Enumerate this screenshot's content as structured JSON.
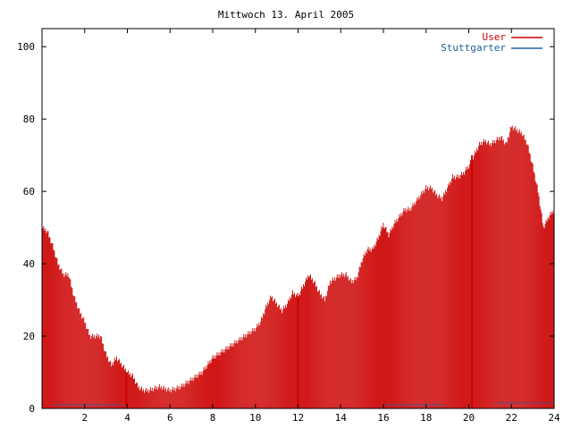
{
  "chart_data": {
    "type": "bar",
    "title": "Mittwoch 13. April 2005",
    "xlabel": "",
    "ylabel": "",
    "xlim": [
      0,
      24
    ],
    "ylim": [
      0,
      105
    ],
    "x_ticks": [
      2,
      4,
      6,
      8,
      10,
      12,
      14,
      16,
      18,
      20,
      22,
      24
    ],
    "x_tick_labels": [
      "2",
      "4",
      "6",
      "8",
      "10",
      "12",
      "14",
      "16",
      "18",
      "20",
      "22",
      "24"
    ],
    "y_ticks": [
      0,
      20,
      40,
      60,
      80,
      100
    ],
    "y_tick_labels": [
      "0",
      "20",
      "40",
      "60",
      "80",
      "100"
    ],
    "grid": false,
    "legend_position": "top-right",
    "series": [
      {
        "name": "User",
        "color": "#cc0000",
        "anchors": [
          [
            0.0,
            50
          ],
          [
            0.25,
            49
          ],
          [
            0.5,
            45
          ],
          [
            0.75,
            40
          ],
          [
            1.0,
            37
          ],
          [
            1.25,
            37
          ],
          [
            1.5,
            31
          ],
          [
            1.75,
            27
          ],
          [
            2.0,
            24
          ],
          [
            2.25,
            20
          ],
          [
            2.5,
            20
          ],
          [
            2.75,
            20
          ],
          [
            3.0,
            15
          ],
          [
            3.25,
            12
          ],
          [
            3.5,
            14
          ],
          [
            3.75,
            12
          ],
          [
            4.0,
            10
          ],
          [
            4.25,
            9
          ],
          [
            4.5,
            6
          ],
          [
            4.75,
            5
          ],
          [
            5.0,
            5
          ],
          [
            5.5,
            6
          ],
          [
            6.0,
            5
          ],
          [
            6.5,
            6
          ],
          [
            7.0,
            8
          ],
          [
            7.5,
            10
          ],
          [
            8.0,
            14
          ],
          [
            8.5,
            16
          ],
          [
            9.0,
            18
          ],
          [
            9.5,
            20
          ],
          [
            10.0,
            22
          ],
          [
            10.25,
            24
          ],
          [
            10.5,
            28
          ],
          [
            10.75,
            31
          ],
          [
            11.0,
            29
          ],
          [
            11.25,
            27
          ],
          [
            11.5,
            29
          ],
          [
            11.75,
            32
          ],
          [
            12.0,
            31
          ],
          [
            12.25,
            34
          ],
          [
            12.5,
            37
          ],
          [
            12.75,
            35
          ],
          [
            13.0,
            32
          ],
          [
            13.25,
            30
          ],
          [
            13.5,
            35
          ],
          [
            13.75,
            36
          ],
          [
            14.0,
            37
          ],
          [
            14.25,
            37
          ],
          [
            14.5,
            35
          ],
          [
            14.75,
            36
          ],
          [
            15.0,
            41
          ],
          [
            15.25,
            44
          ],
          [
            15.5,
            44
          ],
          [
            15.75,
            47
          ],
          [
            16.0,
            51
          ],
          [
            16.25,
            48
          ],
          [
            16.5,
            51
          ],
          [
            16.75,
            53
          ],
          [
            17.0,
            55
          ],
          [
            17.25,
            55
          ],
          [
            17.5,
            57
          ],
          [
            17.75,
            59
          ],
          [
            18.0,
            61
          ],
          [
            18.25,
            61
          ],
          [
            18.5,
            59
          ],
          [
            18.75,
            58
          ],
          [
            19.0,
            61
          ],
          [
            19.25,
            64
          ],
          [
            19.5,
            64
          ],
          [
            19.75,
            65
          ],
          [
            20.0,
            67
          ],
          [
            20.25,
            70
          ],
          [
            20.5,
            73
          ],
          [
            20.75,
            74
          ],
          [
            21.0,
            73
          ],
          [
            21.25,
            74
          ],
          [
            21.5,
            75
          ],
          [
            21.75,
            73
          ],
          [
            22.0,
            78
          ],
          [
            22.25,
            77
          ],
          [
            22.5,
            76
          ],
          [
            22.75,
            73
          ],
          [
            23.0,
            67
          ],
          [
            23.25,
            60
          ],
          [
            23.5,
            50
          ],
          [
            23.75,
            53
          ],
          [
            24.0,
            55
          ]
        ],
        "spikes": [
          [
            3.95,
            10
          ],
          [
            12.0,
            31
          ],
          [
            20.15,
            70
          ]
        ]
      },
      {
        "name": "Stuttgarter",
        "color": "#2060a0",
        "segments": [
          [
            0.5,
            3.8,
            1
          ],
          [
            16.0,
            18.9,
            1
          ],
          [
            21.2,
            24.0,
            1.5
          ]
        ]
      }
    ]
  }
}
